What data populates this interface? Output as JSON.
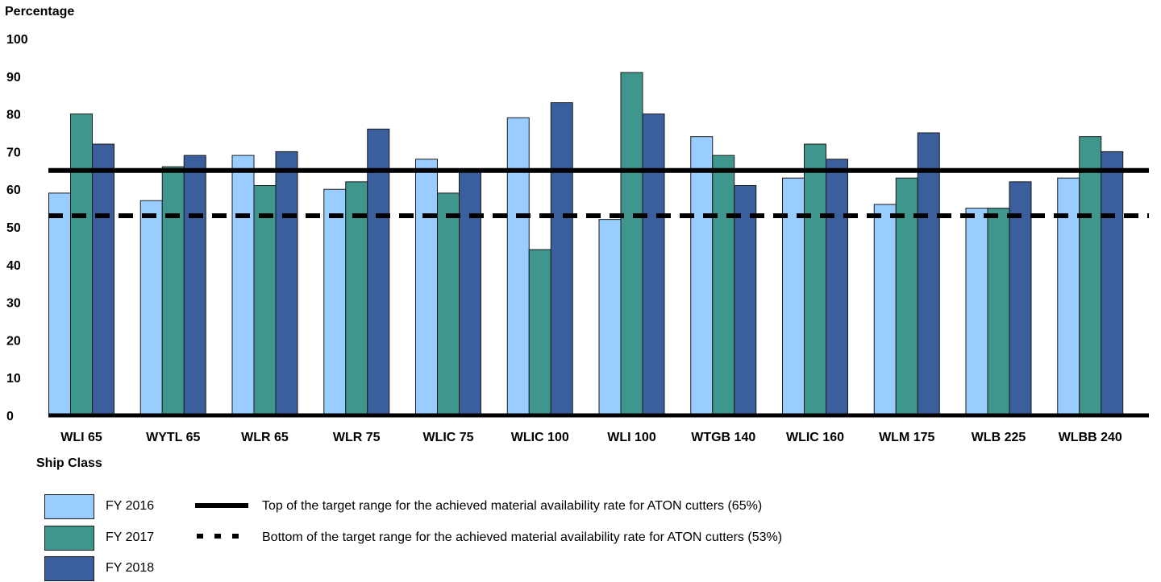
{
  "chart_data": {
    "type": "bar",
    "ylabel": "Percentage",
    "xlabel": "Ship Class",
    "ylim": [
      0,
      100
    ],
    "yticks": [
      "0",
      "10",
      "20",
      "30",
      "40",
      "50",
      "60",
      "70",
      "80",
      "90",
      "100"
    ],
    "categories": [
      "WLI 65",
      "WYTL 65",
      "WLR 65",
      "WLR 75",
      "WLIC 75",
      "WLIC 100",
      "WLI 100",
      "WTGB 140",
      "WLIC 160",
      "WLM 175",
      "WLB 225",
      "WLBB 240"
    ],
    "series": [
      {
        "name": "FY 2016",
        "color": "#99ccff",
        "values": [
          59,
          57,
          69,
          60,
          68,
          79,
          52,
          74,
          63,
          56,
          55,
          63
        ]
      },
      {
        "name": "FY 2017",
        "color": "#3e968c",
        "values": [
          80,
          66,
          61,
          62,
          59,
          44,
          91,
          69,
          72,
          63,
          55,
          74
        ]
      },
      {
        "name": "FY 2018",
        "color": "#3a5f9c",
        "values": [
          72,
          69,
          70,
          76,
          65,
          83,
          80,
          61,
          68,
          75,
          62,
          70
        ]
      }
    ],
    "reference_lines": [
      {
        "value": 65,
        "style": "solid",
        "label": "Top of the target range for the achieved material availability rate for ATON cutters (65%)"
      },
      {
        "value": 53,
        "style": "dashed",
        "label": "Bottom of the target range for the achieved material availability rate for ATON cutters (53%)"
      }
    ],
    "grid": false,
    "legend_position": "bottom-left"
  }
}
